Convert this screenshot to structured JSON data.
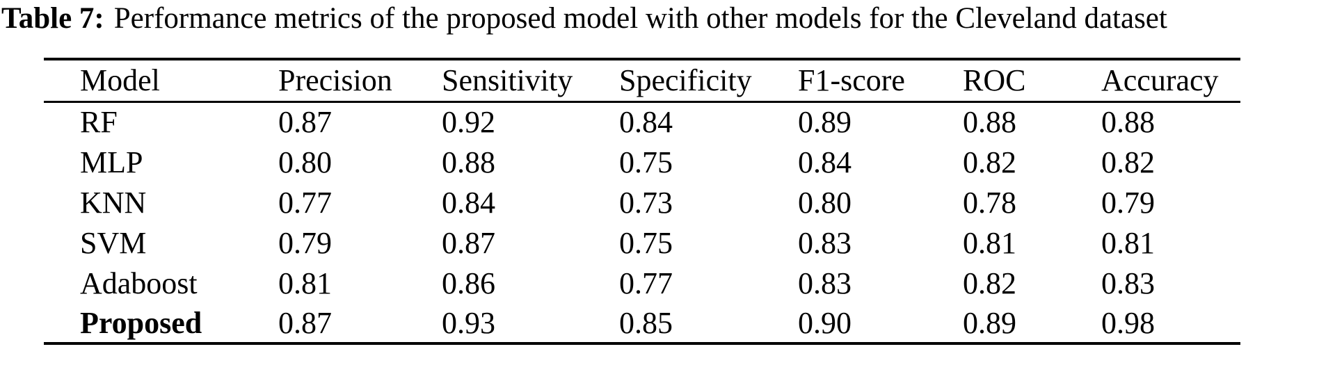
{
  "caption": {
    "label": "Table 7:",
    "text": "Performance metrics of the proposed model with other models for the Cleveland dataset"
  },
  "chart_data": {
    "type": "table",
    "title": "Table 7: Performance metrics of the proposed model with other models for the Cleveland dataset",
    "columns": [
      "Model",
      "Precision",
      "Sensitivity",
      "Specificity",
      "F1-score",
      "ROC",
      "Accuracy"
    ],
    "rows": [
      {
        "cells": [
          "RF",
          "0.87",
          "0.92",
          "0.84",
          "0.89",
          "0.88",
          "0.88"
        ],
        "bold_label": false
      },
      {
        "cells": [
          "MLP",
          "0.80",
          "0.88",
          "0.75",
          "0.84",
          "0.82",
          "0.82"
        ],
        "bold_label": false
      },
      {
        "cells": [
          "KNN",
          "0.77",
          "0.84",
          "0.73",
          "0.80",
          "0.78",
          "0.79"
        ],
        "bold_label": false
      },
      {
        "cells": [
          "SVM",
          "0.79",
          "0.87",
          "0.75",
          "0.83",
          "0.81",
          "0.81"
        ],
        "bold_label": false
      },
      {
        "cells": [
          "Adaboost",
          "0.81",
          "0.86",
          "0.77",
          "0.83",
          "0.82",
          "0.83"
        ],
        "bold_label": false
      },
      {
        "cells": [
          "Proposed",
          "0.87",
          "0.93",
          "0.85",
          "0.90",
          "0.89",
          "0.98"
        ],
        "bold_label": true
      }
    ]
  },
  "colors": {
    "text": "#000000",
    "background": "#ffffff",
    "rule": "#000000"
  }
}
